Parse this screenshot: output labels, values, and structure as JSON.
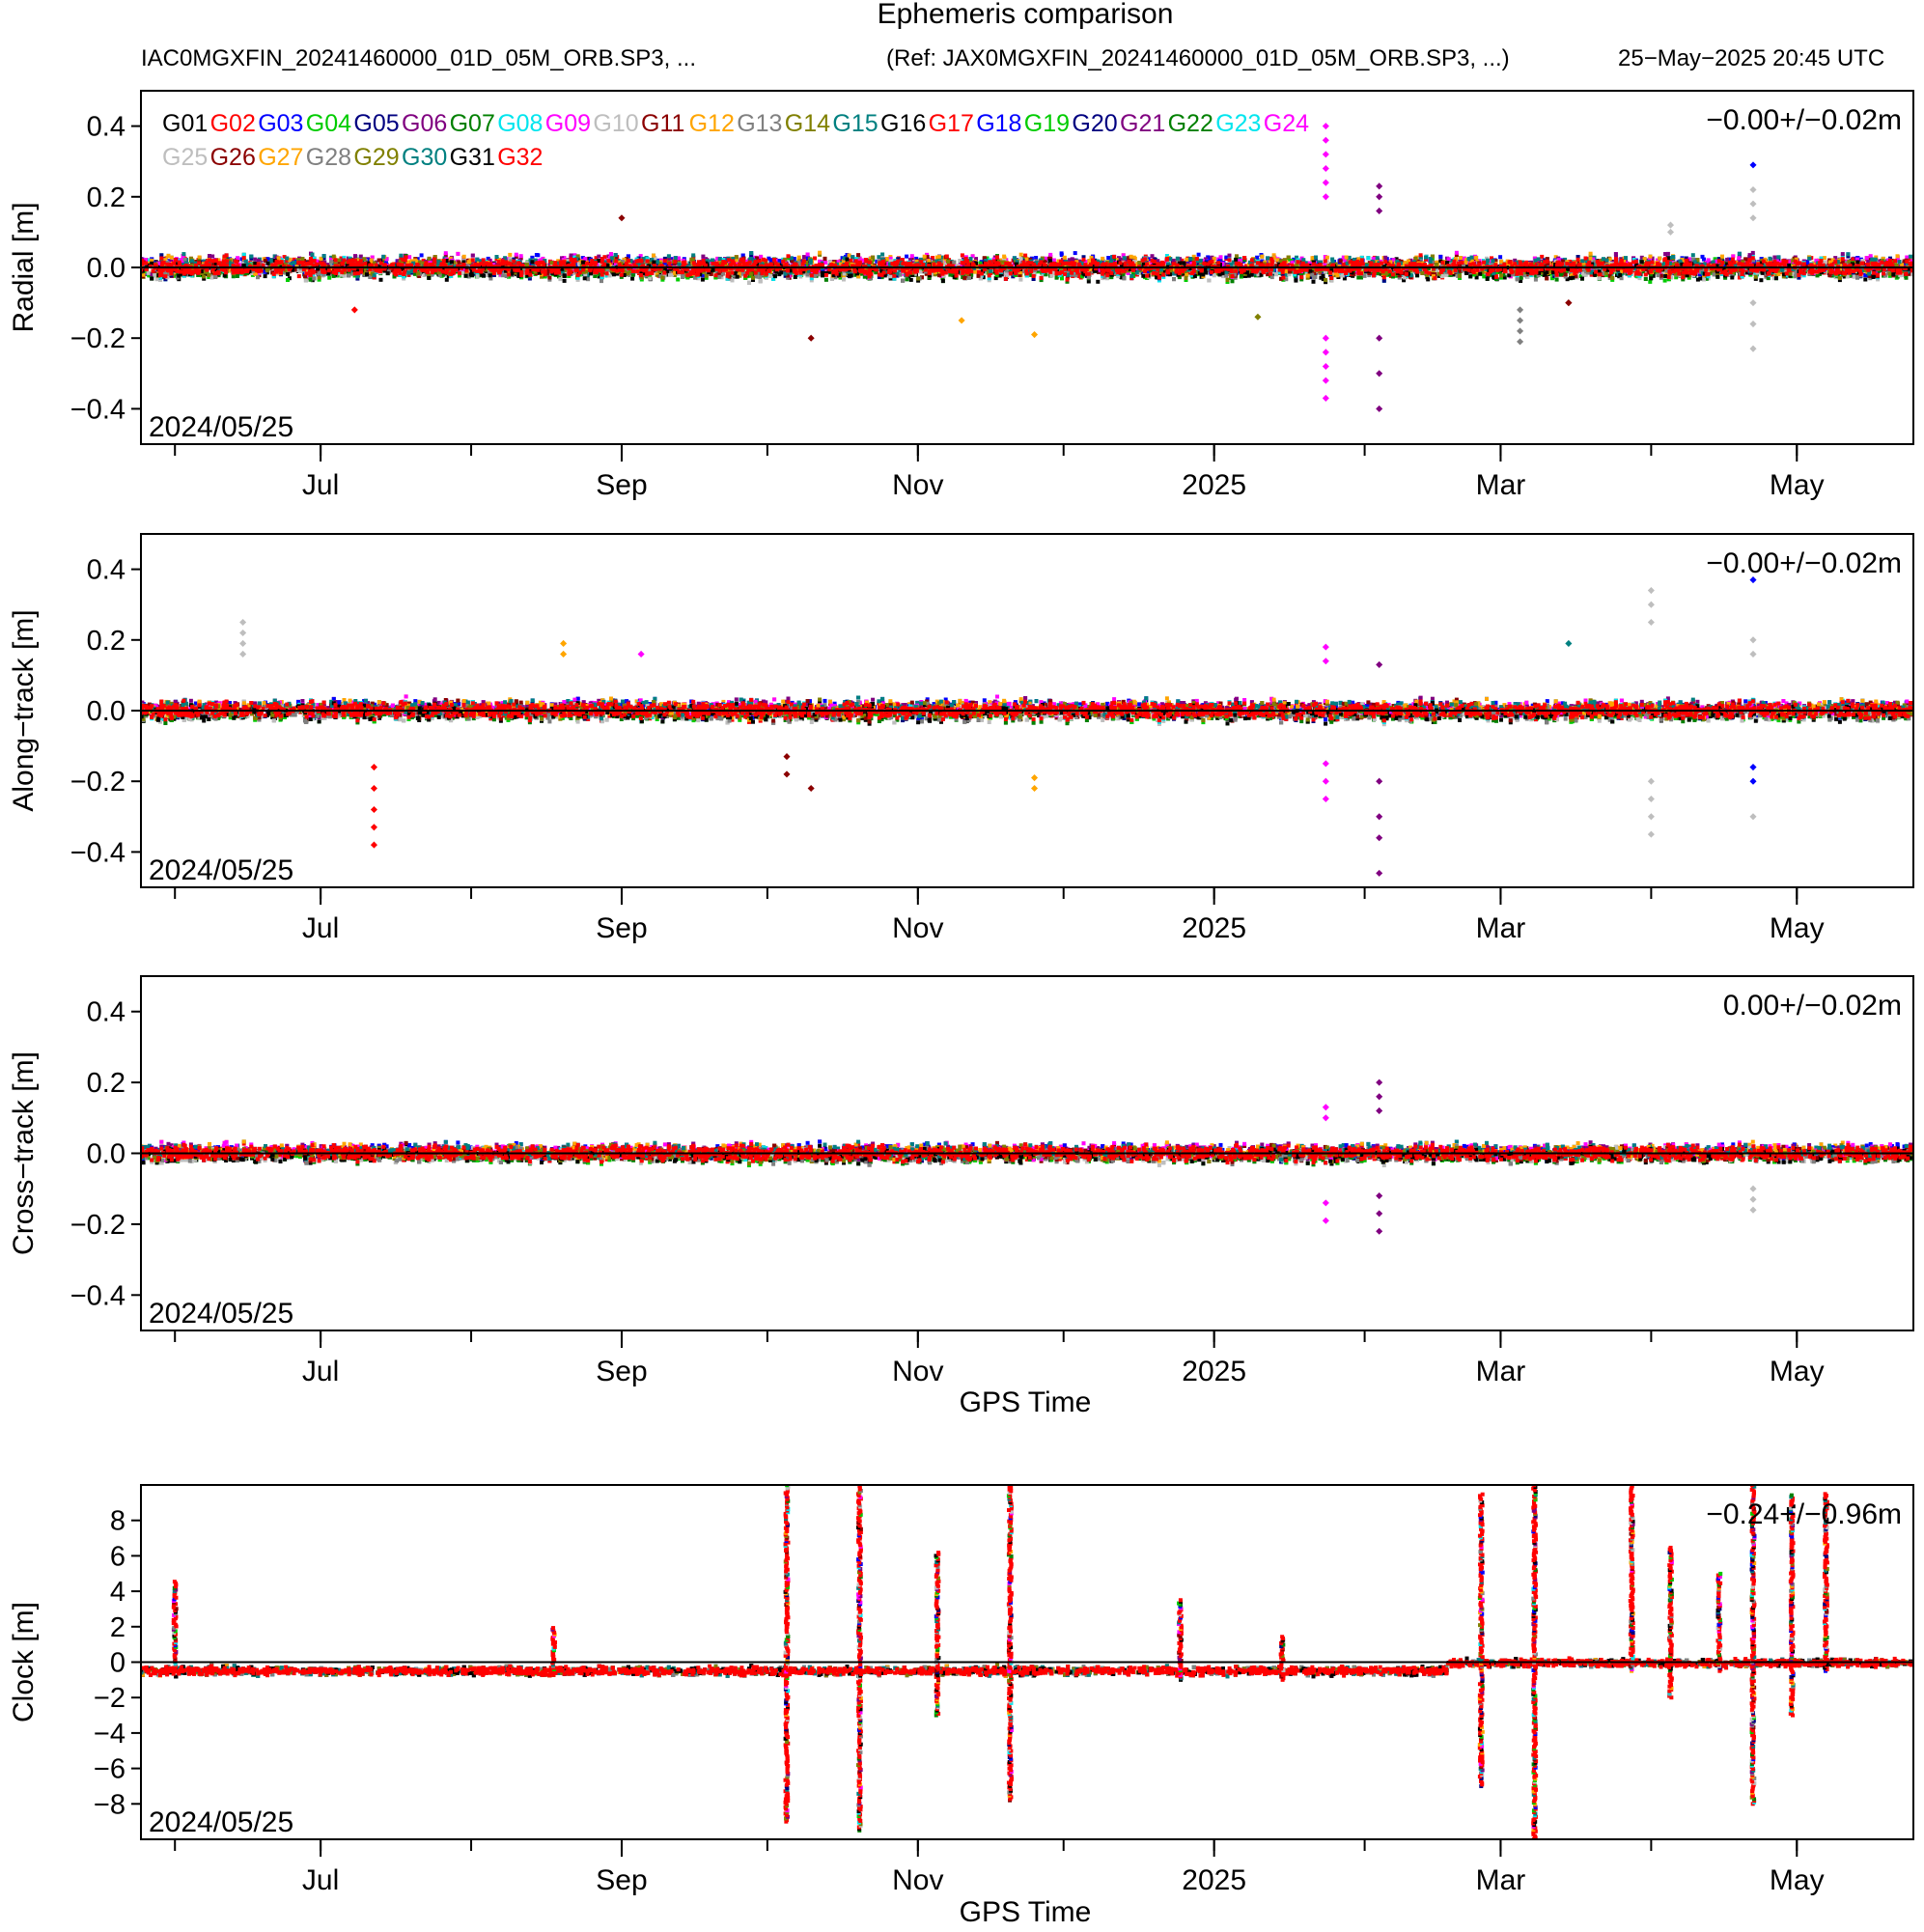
{
  "figure": {
    "title": "Ephemeris comparison",
    "subtitle_left": "IAC0MGXFIN_20241460000_01D_05M_ORB.SP3, ...",
    "subtitle_ref": "(Ref: JAX0MGXFIN_20241460000_01D_05M_ORB.SP3, ...)",
    "timestamp": "25−May−2025 20:45 UTC",
    "start_date_label": "2024/05/25",
    "xlabel": "GPS Time"
  },
  "legend": {
    "placement": "top-left of first panel",
    "entries": [
      {
        "name": "G01",
        "color": "#000000"
      },
      {
        "name": "G02",
        "color": "#ff0000"
      },
      {
        "name": "G03",
        "color": "#0000ff"
      },
      {
        "name": "G04",
        "color": "#00cc00"
      },
      {
        "name": "G05",
        "color": "#000080"
      },
      {
        "name": "G06",
        "color": "#800080"
      },
      {
        "name": "G07",
        "color": "#008000"
      },
      {
        "name": "G08",
        "color": "#00e5ee"
      },
      {
        "name": "G09",
        "color": "#ff00ff"
      },
      {
        "name": "G10",
        "color": "#bebebe"
      },
      {
        "name": "G11",
        "color": "#8b0000"
      },
      {
        "name": "G12",
        "color": "#ffa500"
      },
      {
        "name": "G13",
        "color": "#808080"
      },
      {
        "name": "G14",
        "color": "#808000"
      },
      {
        "name": "G15",
        "color": "#008080"
      },
      {
        "name": "G16",
        "color": "#000000"
      },
      {
        "name": "G17",
        "color": "#ff0000"
      },
      {
        "name": "G18",
        "color": "#0000ff"
      },
      {
        "name": "G19",
        "color": "#00cc00"
      },
      {
        "name": "G20",
        "color": "#000080"
      },
      {
        "name": "G21",
        "color": "#800080"
      },
      {
        "name": "G22",
        "color": "#008000"
      },
      {
        "name": "G23",
        "color": "#00e5ee"
      },
      {
        "name": "G24",
        "color": "#ff00ff"
      },
      {
        "name": "G25",
        "color": "#bebebe"
      },
      {
        "name": "G26",
        "color": "#8b0000"
      },
      {
        "name": "G27",
        "color": "#ffa500"
      },
      {
        "name": "G28",
        "color": "#808080"
      },
      {
        "name": "G29",
        "color": "#808000"
      },
      {
        "name": "G30",
        "color": "#008080"
      },
      {
        "name": "G31",
        "color": "#000000"
      },
      {
        "name": "G32",
        "color": "#ff0000"
      }
    ]
  },
  "chart_data": [
    {
      "type": "scatter",
      "ylabel": "Radial [m]",
      "stat": "−0.00+/−0.02m",
      "ylim": [
        -0.5,
        0.5
      ],
      "yticks": [
        0.4,
        0.2,
        0.0,
        -0.2,
        -0.4
      ],
      "yticklabels": [
        "0.4",
        "0.2",
        "0.0",
        "−0.2",
        "−0.4"
      ],
      "xlim": [
        "2024-05-25",
        "2025-05-25"
      ],
      "xticks": [
        "2024-07-01",
        "2024-09-01",
        "2024-11-01",
        "2025-01-01",
        "2025-03-01",
        "2025-05-01"
      ],
      "xticklabels": [
        "Jul",
        "Sep",
        "Nov",
        "2025",
        "Mar",
        "May"
      ],
      "grid": false,
      "baseline_width": 0.03,
      "spread": 0.04,
      "excursions": [
        {
          "date": "2024-07-08",
          "series": "G32",
          "values": [
            -0.12
          ]
        },
        {
          "date": "2024-09-01",
          "series": "G11",
          "values": [
            0.14
          ]
        },
        {
          "date": "2024-10-10",
          "series": "G11",
          "values": [
            -0.2
          ]
        },
        {
          "date": "2024-11-10",
          "series": "G12",
          "values": [
            -0.15
          ]
        },
        {
          "date": "2024-11-25",
          "series": "G12",
          "values": [
            -0.19
          ]
        },
        {
          "date": "2025-01-10",
          "series": "G14",
          "values": [
            -0.14
          ]
        },
        {
          "date": "2025-01-24",
          "series": "G09",
          "values": [
            0.4,
            0.36,
            0.32,
            0.28,
            0.24,
            0.2,
            -0.2,
            -0.24,
            -0.28,
            -0.32,
            -0.37
          ]
        },
        {
          "date": "2025-02-04",
          "series": "G21",
          "values": [
            0.23,
            0.2,
            0.16,
            -0.2,
            -0.3,
            -0.4
          ]
        },
        {
          "date": "2025-03-05",
          "series": "G28",
          "values": [
            -0.12,
            -0.15,
            -0.18,
            -0.21
          ]
        },
        {
          "date": "2025-03-15",
          "series": "G11",
          "values": [
            -0.1,
            -0.1
          ]
        },
        {
          "date": "2025-04-05",
          "series": "G10",
          "values": [
            0.12,
            0.1
          ]
        },
        {
          "date": "2025-04-22",
          "series": "G03",
          "values": [
            0.29
          ]
        },
        {
          "date": "2025-04-22",
          "series": "G10",
          "values": [
            0.22,
            0.18,
            0.14,
            -0.1,
            -0.16,
            -0.23
          ]
        }
      ]
    },
    {
      "type": "scatter",
      "ylabel": "Along−track [m]",
      "stat": "−0.00+/−0.02m",
      "ylim": [
        -0.5,
        0.5
      ],
      "yticks": [
        0.4,
        0.2,
        0.0,
        -0.2,
        -0.4
      ],
      "yticklabels": [
        "0.4",
        "0.2",
        "0.0",
        "−0.2",
        "−0.4"
      ],
      "xlim": [
        "2024-05-25",
        "2025-05-25"
      ],
      "xticks": [
        "2024-07-01",
        "2024-09-01",
        "2024-11-01",
        "2025-01-01",
        "2025-03-01",
        "2025-05-01"
      ],
      "xticklabels": [
        "Jul",
        "Sep",
        "Nov",
        "2025",
        "Mar",
        "May"
      ],
      "grid": false,
      "baseline_width": 0.03,
      "spread": 0.035,
      "excursions": [
        {
          "date": "2024-06-15",
          "series": "G10",
          "values": [
            0.25,
            0.22,
            0.19,
            0.16
          ]
        },
        {
          "date": "2024-07-12",
          "series": "G32",
          "values": [
            -0.16,
            -0.22,
            -0.28,
            -0.33,
            -0.38
          ]
        },
        {
          "date": "2024-08-20",
          "series": "G12",
          "values": [
            0.19,
            0.16
          ]
        },
        {
          "date": "2024-09-05",
          "series": "G09",
          "values": [
            0.16
          ]
        },
        {
          "date": "2024-10-05",
          "series": "G11",
          "values": [
            -0.13,
            -0.18
          ]
        },
        {
          "date": "2024-10-10",
          "series": "G11",
          "values": [
            -0.22
          ]
        },
        {
          "date": "2024-11-25",
          "series": "G12",
          "values": [
            -0.19,
            -0.22
          ]
        },
        {
          "date": "2025-01-24",
          "series": "G09",
          "values": [
            0.18,
            0.14,
            -0.15,
            -0.2,
            -0.25
          ]
        },
        {
          "date": "2025-02-04",
          "series": "G21",
          "values": [
            0.13,
            -0.2,
            -0.3,
            -0.36,
            -0.46
          ]
        },
        {
          "date": "2025-03-15",
          "series": "G15",
          "values": [
            0.19
          ]
        },
        {
          "date": "2025-04-01",
          "series": "G10",
          "values": [
            0.34,
            0.3,
            0.25,
            -0.2,
            -0.25,
            -0.3,
            -0.35
          ]
        },
        {
          "date": "2025-04-22",
          "series": "G03",
          "values": [
            0.37,
            -0.16,
            -0.2
          ]
        },
        {
          "date": "2025-04-22",
          "series": "G10",
          "values": [
            0.2,
            0.16,
            -0.3
          ]
        }
      ]
    },
    {
      "type": "scatter",
      "ylabel": "Cross−track [m]",
      "stat": "0.00+/−0.02m",
      "ylim": [
        -0.5,
        0.5
      ],
      "yticks": [
        0.4,
        0.2,
        0.0,
        -0.2,
        -0.4
      ],
      "yticklabels": [
        "0.4",
        "0.2",
        "0.0",
        "−0.2",
        "−0.4"
      ],
      "xlim": [
        "2024-05-25",
        "2025-05-25"
      ],
      "xticks": [
        "2024-07-01",
        "2024-09-01",
        "2024-11-01",
        "2025-01-01",
        "2025-03-01",
        "2025-05-01"
      ],
      "xticklabels": [
        "Jul",
        "Sep",
        "Nov",
        "2025",
        "Mar",
        "May"
      ],
      "grid": false,
      "baseline_width": 0.03,
      "spread": 0.03,
      "excursions": [
        {
          "date": "2025-01-24",
          "series": "G09",
          "values": [
            0.13,
            0.1,
            -0.14,
            -0.19
          ]
        },
        {
          "date": "2025-02-04",
          "series": "G21",
          "values": [
            0.2,
            0.16,
            0.12,
            -0.12,
            -0.17,
            -0.22
          ]
        },
        {
          "date": "2025-04-22",
          "series": "G10",
          "values": [
            -0.1,
            -0.13,
            -0.16
          ]
        }
      ]
    },
    {
      "type": "scatter",
      "ylabel": "Clock [m]",
      "stat": "−0.24+/−0.96m",
      "ylim": [
        -10,
        10
      ],
      "yticks": [
        8,
        6,
        4,
        2,
        0,
        -2,
        -4,
        -6,
        -8
      ],
      "yticklabels": [
        "8",
        "6",
        "4",
        "2",
        "0",
        "−2",
        "−4",
        "−6",
        "−8"
      ],
      "xlim": [
        "2024-05-25",
        "2025-05-25"
      ],
      "xticks": [
        "2024-07-01",
        "2024-09-01",
        "2024-11-01",
        "2025-01-01",
        "2025-03-01",
        "2025-05-01"
      ],
      "xticklabels": [
        "Jul",
        "Sep",
        "Nov",
        "2025",
        "Mar",
        "May"
      ],
      "grid": false,
      "baseline_level": -0.5,
      "spread": 0.35,
      "excursions": [
        {
          "date": "2024-06-01",
          "values": [
            3,
            3.5,
            4,
            4.6
          ]
        },
        {
          "date": "2024-08-18",
          "values": [
            1,
            1.5,
            2
          ]
        },
        {
          "date": "2024-10-05",
          "values": [
            10,
            8,
            6,
            4,
            2,
            -2,
            -4,
            -6,
            -8,
            -9
          ]
        },
        {
          "date": "2024-10-20",
          "values": [
            10,
            8,
            6,
            4,
            2,
            -2,
            -4,
            -6,
            -8,
            -9.5
          ]
        },
        {
          "date": "2024-11-05",
          "values": [
            6.2,
            5,
            4,
            3,
            2,
            -2,
            -3
          ]
        },
        {
          "date": "2024-11-20",
          "values": [
            10,
            8,
            6,
            4,
            2,
            -2,
            -4,
            -6,
            -7.8
          ]
        },
        {
          "date": "2024-12-25",
          "values": [
            3.5,
            2.5,
            1.5,
            -1
          ]
        },
        {
          "date": "2025-01-15",
          "values": [
            1.5,
            1,
            -1
          ]
        },
        {
          "date": "2025-02-25",
          "values": [
            9.5,
            7,
            5,
            3,
            -2,
            -4,
            -6,
            -7
          ]
        },
        {
          "date": "2025-03-08",
          "values": [
            10,
            8,
            6,
            4,
            2,
            -2,
            -4,
            -6,
            -8,
            -10
          ]
        },
        {
          "date": "2025-03-28",
          "values": [
            10,
            8,
            6,
            4,
            2
          ]
        },
        {
          "date": "2025-04-05",
          "values": [
            6.5,
            5,
            3,
            1,
            -1,
            -2
          ]
        },
        {
          "date": "2025-04-15",
          "values": [
            5,
            3,
            1
          ]
        },
        {
          "date": "2025-04-22",
          "values": [
            10,
            8,
            6,
            4,
            2,
            -2,
            -4,
            -6,
            -8
          ]
        },
        {
          "date": "2025-04-30",
          "values": [
            9.5,
            7,
            5,
            3,
            -3
          ]
        },
        {
          "date": "2025-05-07",
          "values": [
            9.5,
            7,
            5,
            3
          ]
        }
      ]
    }
  ]
}
